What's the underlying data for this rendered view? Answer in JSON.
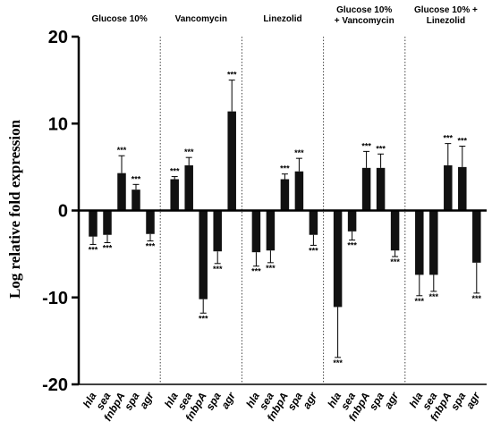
{
  "chart_data": {
    "type": "bar",
    "ylabel": "Log relative fold expression",
    "ylim": [
      -20,
      20
    ],
    "yticks": [
      "20",
      "10",
      "0",
      "-10",
      "-20"
    ],
    "ytick_values": [
      20,
      10,
      0,
      -10,
      -20
    ],
    "categories": [
      "hla",
      "sea",
      "fnbpA",
      "spa",
      "agr"
    ],
    "bar_color": "#111111",
    "significance_label": "***",
    "panels": [
      {
        "title_lines": [
          "Glucose 10%"
        ],
        "values": [
          -3.0,
          -2.8,
          4.3,
          2.4,
          -2.7
        ],
        "errors": [
          0.9,
          0.9,
          2.0,
          0.6,
          0.8
        ]
      },
      {
        "title_lines": [
          "Vancomycin"
        ],
        "values": [
          3.6,
          5.2,
          -10.2,
          -4.7,
          11.4
        ],
        "errors": [
          0.3,
          0.9,
          1.6,
          1.4,
          3.6
        ]
      },
      {
        "title_lines": [
          "Linezolid"
        ],
        "values": [
          -4.8,
          -4.6,
          3.6,
          4.5,
          -2.8
        ],
        "errors": [
          1.6,
          1.4,
          0.6,
          1.5,
          1.2
        ]
      },
      {
        "title_lines": [
          "Glucose 10%",
          "+ Vancomycin"
        ],
        "values": [
          -11.1,
          -2.4,
          4.9,
          4.9,
          -4.6
        ],
        "errors": [
          5.8,
          1.0,
          1.9,
          1.6,
          0.7
        ]
      },
      {
        "title_lines": [
          "Glucose 10% +",
          "Linezolid"
        ],
        "values": [
          -7.4,
          -7.4,
          5.2,
          5.0,
          -6.0
        ],
        "errors": [
          2.4,
          1.9,
          2.5,
          2.4,
          3.5
        ]
      }
    ]
  }
}
